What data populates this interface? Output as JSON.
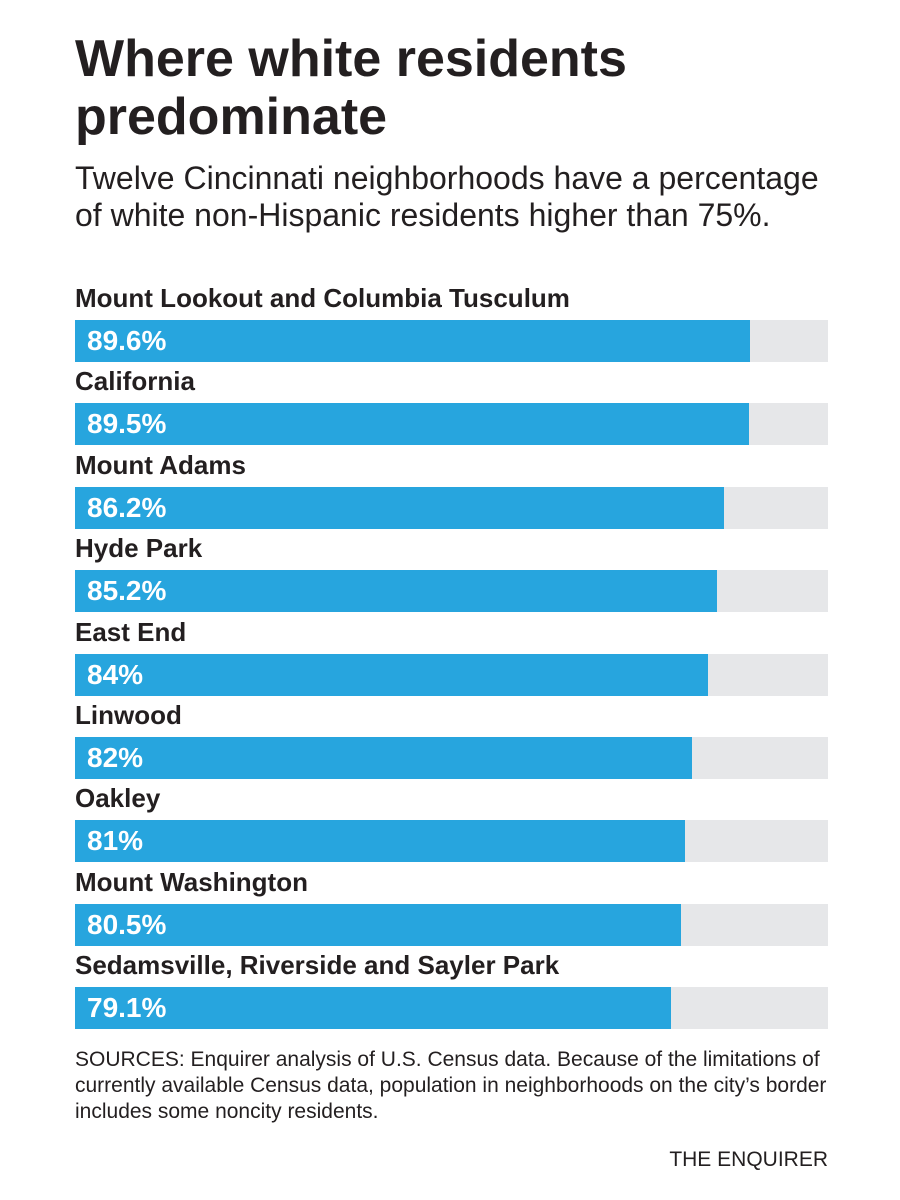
{
  "chart_data": {
    "type": "bar",
    "title": "Where white residents predominate",
    "subtitle": "Twelve Cincinnati neighborhoods have a percentage of white non-Hispanic residents higher than 75%.",
    "categories": [
      "Mount Lookout and Columbia Tusculum",
      "California",
      "Mount Adams",
      "Hyde Park",
      "East End",
      "Linwood",
      "Oakley",
      "Mount Washington",
      "Sedamsville, Riverside and Sayler Park"
    ],
    "values": [
      89.6,
      89.5,
      86.2,
      85.2,
      84,
      82,
      81,
      80.5,
      79.1
    ],
    "value_labels": [
      "89.6%",
      "89.5%",
      "86.2%",
      "85.2%",
      "84%",
      "82%",
      "81%",
      "80.5%",
      "79.1%"
    ],
    "color": "#27a5de",
    "track_color": "#e6e7e9",
    "xlim": [
      0,
      100
    ],
    "source": "SOURCES: Enquirer analysis of U.S. Census data. Because of the limitations of currently available Census data, population in neighborhoods on the city’s border includes some noncity residents.",
    "credit": "THE ENQUIRER"
  }
}
